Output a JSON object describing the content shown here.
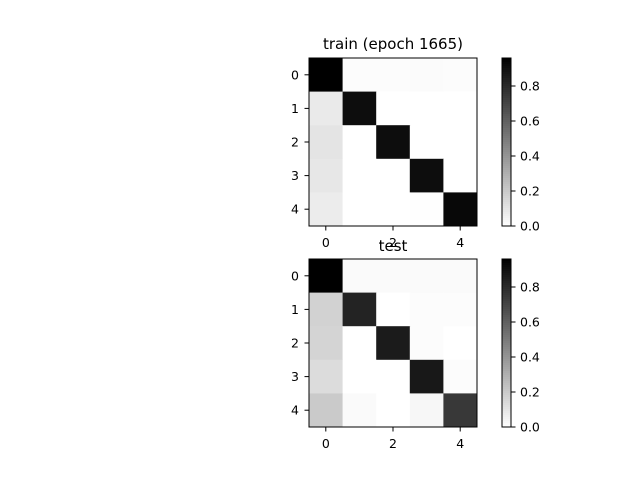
{
  "chart_data": [
    {
      "type": "heatmap",
      "title": "train (epoch 1665)",
      "x_ticks": [
        "0",
        "2",
        "4"
      ],
      "y_ticks": [
        "0",
        "1",
        "2",
        "3",
        "4"
      ],
      "colormap": "gray_r",
      "colorbar": {
        "range": [
          0.0,
          0.96
        ],
        "ticks": [
          "0.0",
          "0.2",
          "0.4",
          "0.6",
          "0.8"
        ],
        "tick_values": [
          0.0,
          0.2,
          0.4,
          0.6,
          0.8
        ]
      },
      "values": [
        [
          0.98,
          0.01,
          0.01,
          0.015,
          0.01
        ],
        [
          0.08,
          0.91,
          0.0,
          0.0,
          0.0
        ],
        [
          0.1,
          0.0,
          0.91,
          0.0,
          0.0
        ],
        [
          0.09,
          0.0,
          0.0,
          0.91,
          0.0
        ],
        [
          0.07,
          0.0,
          0.0,
          0.005,
          0.93
        ]
      ]
    },
    {
      "type": "heatmap",
      "title": "test",
      "x_ticks": [
        "0",
        "2",
        "4"
      ],
      "y_ticks": [
        "0",
        "1",
        "2",
        "3",
        "4"
      ],
      "colormap": "gray_r",
      "colorbar": {
        "range": [
          0.0,
          0.96
        ],
        "ticks": [
          "0.0",
          "0.2",
          "0.4",
          "0.6",
          "0.8"
        ],
        "tick_values": [
          0.0,
          0.2,
          0.4,
          0.6,
          0.8
        ]
      },
      "values": [
        [
          0.98,
          0.02,
          0.02,
          0.02,
          0.02
        ],
        [
          0.17,
          0.83,
          0.0,
          0.01,
          0.01
        ],
        [
          0.16,
          0.0,
          0.86,
          0.01,
          0.0
        ],
        [
          0.13,
          0.0,
          0.0,
          0.87,
          0.01
        ],
        [
          0.2,
          0.02,
          0.0,
          0.03,
          0.75
        ]
      ]
    }
  ]
}
